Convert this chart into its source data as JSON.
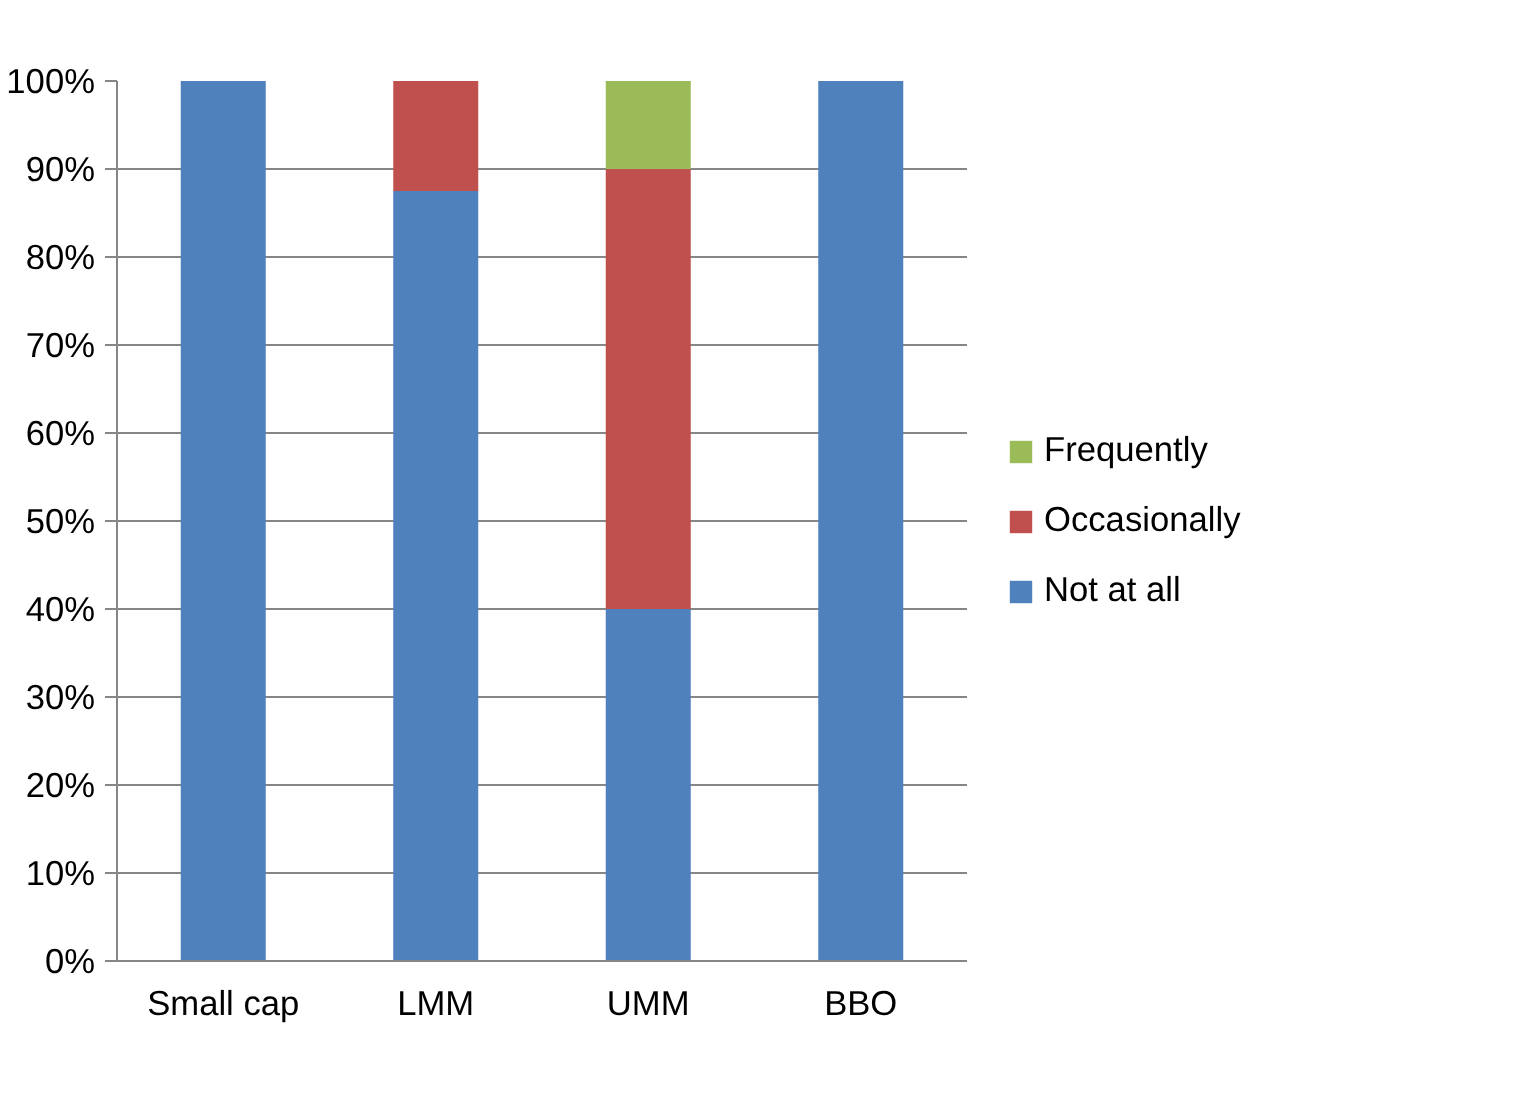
{
  "chart_data": {
    "type": "bar",
    "stacked": true,
    "categories": [
      "Small cap",
      "LMM",
      "UMM",
      "BBO"
    ],
    "series": [
      {
        "name": "Not at all",
        "color": "#4f81bd",
        "values": [
          100,
          87.5,
          40,
          100
        ]
      },
      {
        "name": "Occasionally",
        "color": "#c0504d",
        "values": [
          0,
          12.5,
          50,
          0
        ]
      },
      {
        "name": "Frequently",
        "color": "#9bbb59",
        "values": [
          0,
          0,
          10,
          0
        ]
      }
    ],
    "ylim": [
      0,
      100
    ],
    "yticks": [
      {
        "value": 0,
        "label": "0%"
      },
      {
        "value": 10,
        "label": "10%"
      },
      {
        "value": 20,
        "label": "20%"
      },
      {
        "value": 30,
        "label": "30%"
      },
      {
        "value": 40,
        "label": "40%"
      },
      {
        "value": 50,
        "label": "50%"
      },
      {
        "value": 60,
        "label": "60%"
      },
      {
        "value": 70,
        "label": "70%"
      },
      {
        "value": 80,
        "label": "80%"
      },
      {
        "value": 90,
        "label": "90%"
      },
      {
        "value": 100,
        "label": "100%"
      }
    ],
    "grid": "y",
    "legend": "right"
  }
}
